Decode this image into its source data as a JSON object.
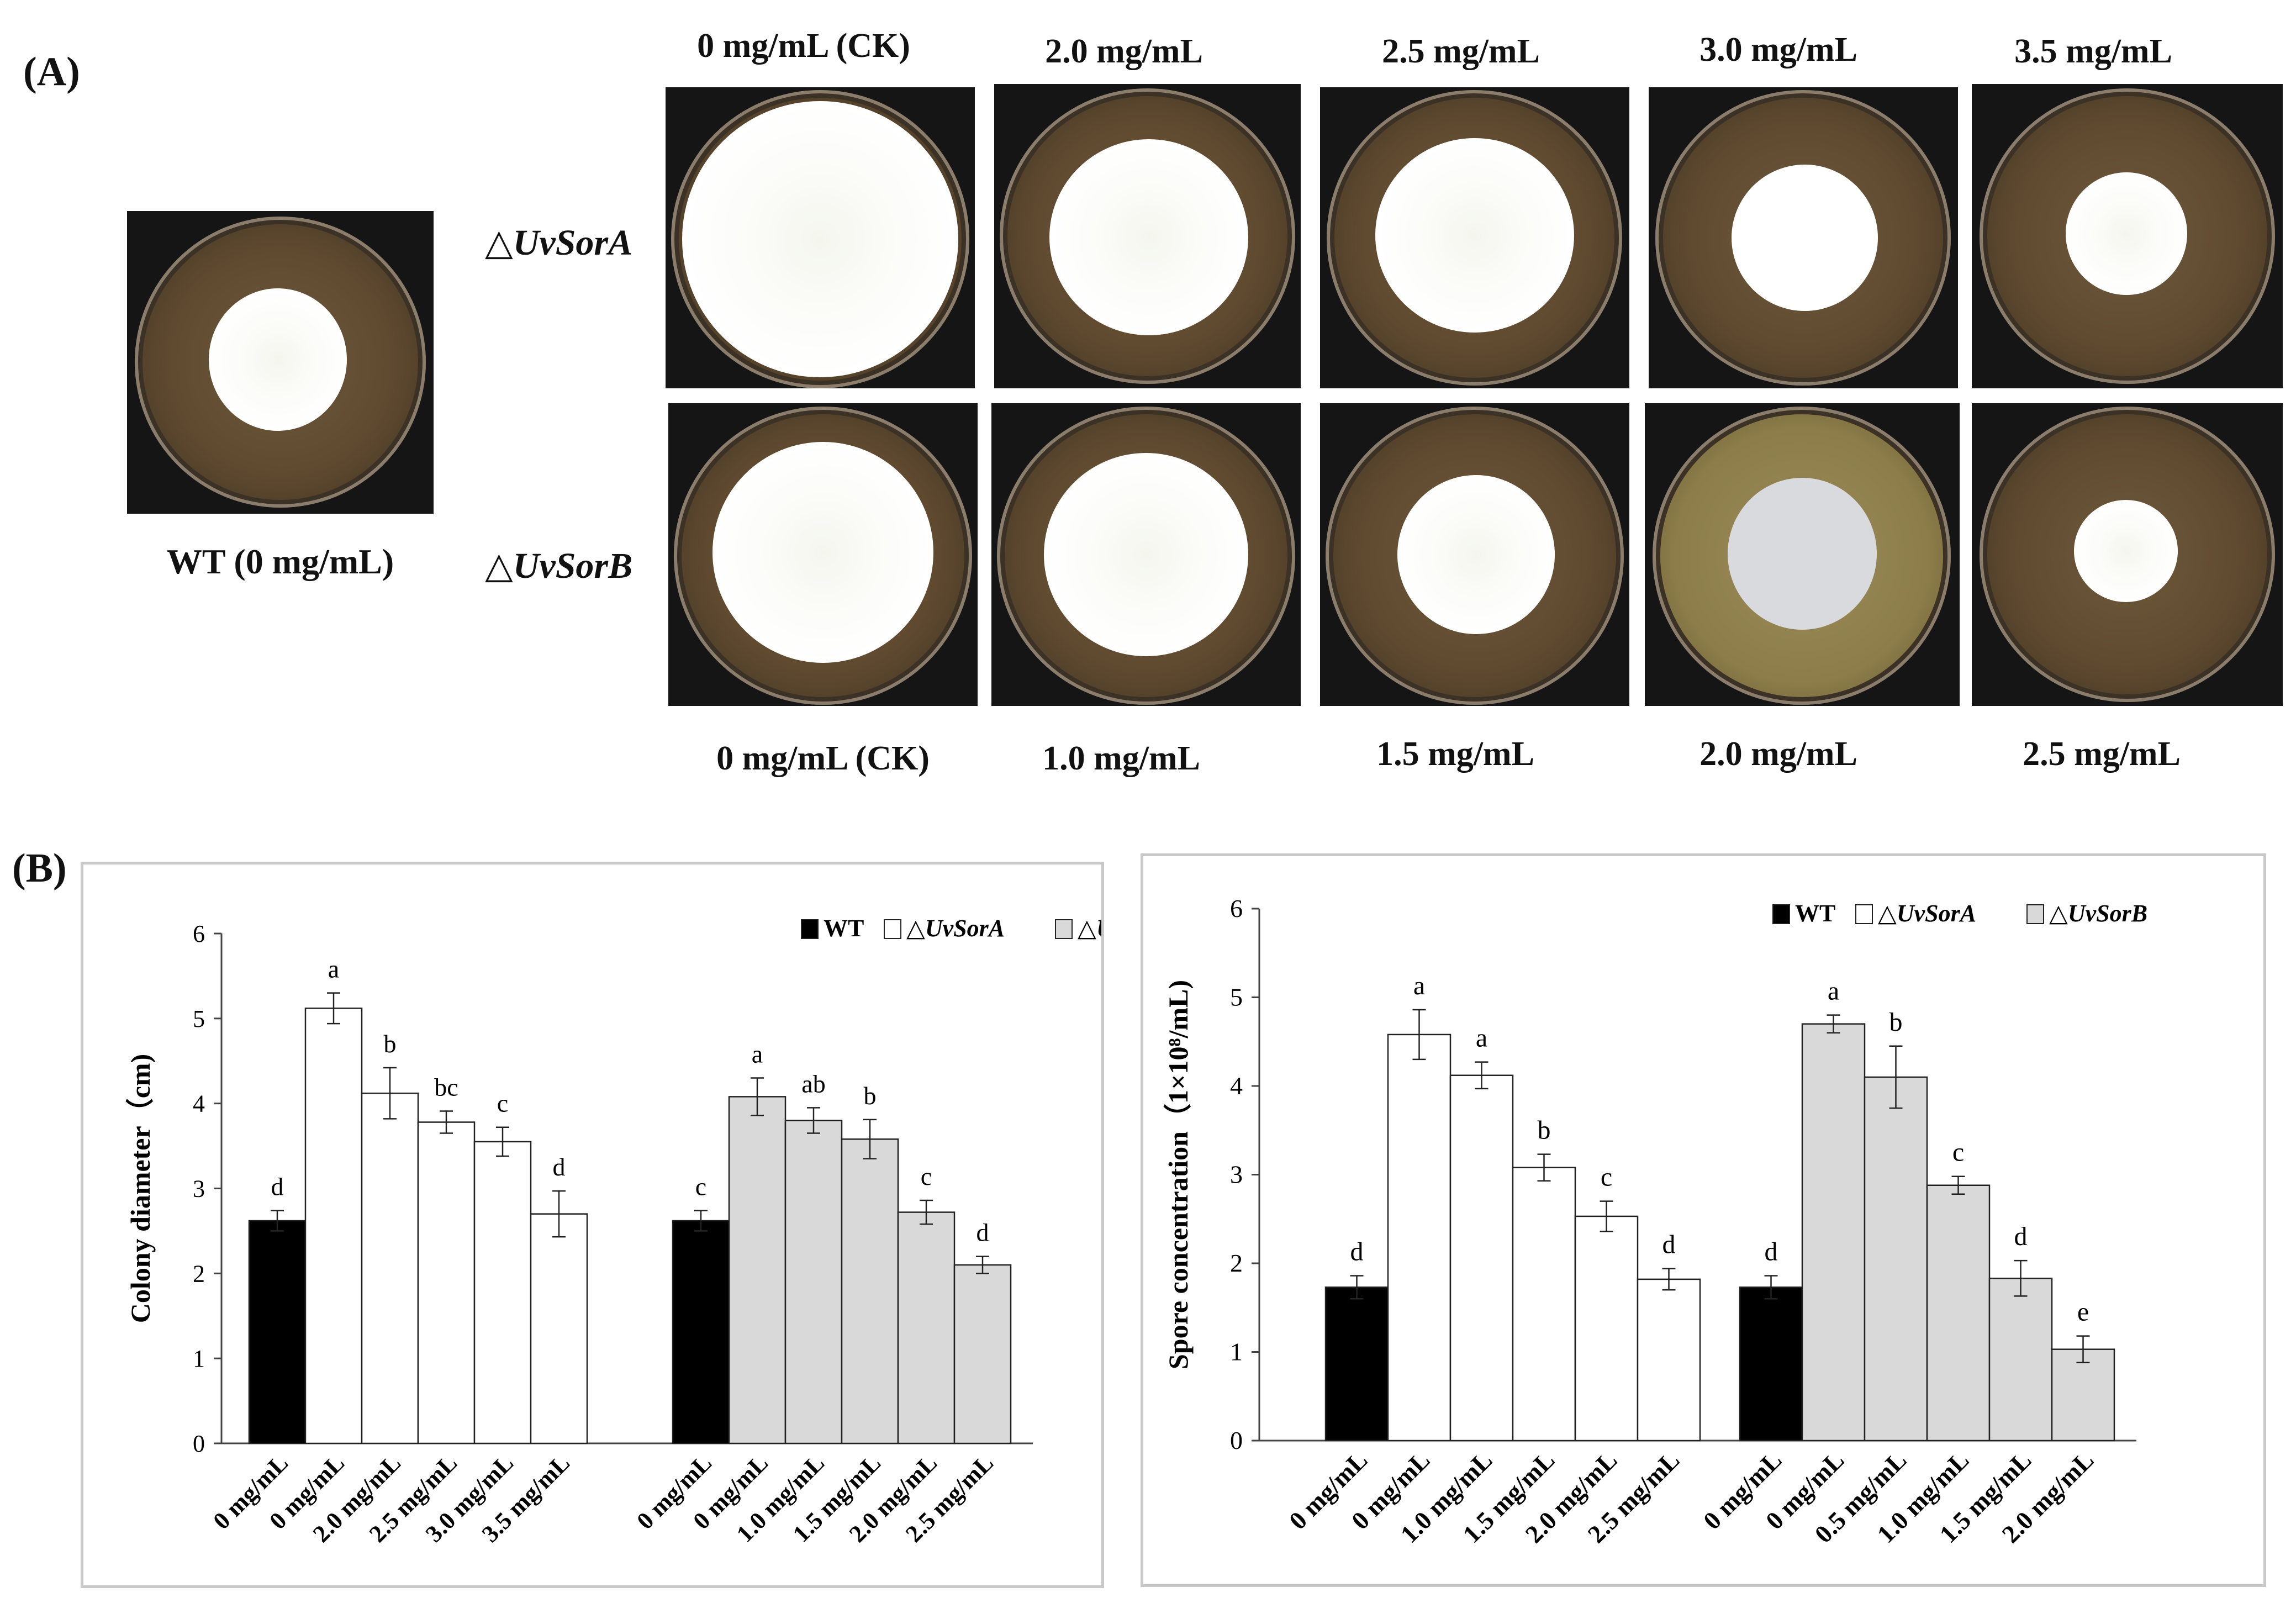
{
  "panel_a": {
    "label": "(A)",
    "top_concentrations": [
      "0 mg/mL (CK)",
      "2.0 mg/mL",
      "2.5 mg/mL",
      "3.0 mg/mL",
      "3.5 mg/mL"
    ],
    "bottom_concentrations": [
      "0 mg/mL (CK)",
      "1.0 mg/mL",
      "1.5 mg/mL",
      "2.0 mg/mL",
      "2.5 mg/mL"
    ],
    "strain_a": "UvSorA",
    "strain_b": "UvSorB",
    "triangle": "△",
    "wt_label": "WT  (0 mg/mL)"
  },
  "panel_b": {
    "label": "(B)"
  },
  "chart_data": [
    {
      "type": "bar",
      "title": "",
      "ylabel": "Colony diameter（cm)",
      "xlabel": "",
      "ylim": [
        0,
        6
      ],
      "yticks": [
        "0",
        "1",
        "2",
        "3",
        "4",
        "5",
        "6"
      ],
      "legend": {
        "placement": "top-right",
        "entries": [
          "WT",
          "△UvSorA",
          "△UvSorB"
        ],
        "colors": [
          "#000000",
          "#ffffff",
          "#d9d9d9"
        ]
      },
      "groups": [
        {
          "categories": [
            "0 mg/mL",
            "0 mg/mL",
            "2.0 mg/mL",
            "2.5 mg/mL",
            "3.0 mg/mL",
            "3.5 mg/mL"
          ],
          "series": [
            "WT",
            "△UvSorA",
            "△UvSorA",
            "△UvSorA",
            "△UvSorA",
            "△UvSorA"
          ],
          "values": [
            2.62,
            5.12,
            4.12,
            3.78,
            3.55,
            2.7
          ],
          "errors": [
            0.12,
            0.18,
            0.3,
            0.13,
            0.17,
            0.27
          ],
          "letters": [
            "d",
            "a",
            "b",
            "bc",
            "c",
            "d"
          ]
        },
        {
          "categories": [
            "0 mg/mL",
            "0 mg/mL",
            "1.0 mg/mL",
            "1.5 mg/mL",
            "2.0 mg/mL",
            "2.5 mg/mL"
          ],
          "series": [
            "WT",
            "△UvSorB",
            "△UvSorB",
            "△UvSorB",
            "△UvSorB",
            "△UvSorB"
          ],
          "values": [
            2.62,
            4.08,
            3.8,
            3.58,
            2.72,
            2.1
          ],
          "errors": [
            0.12,
            0.22,
            0.15,
            0.23,
            0.14,
            0.1
          ],
          "letters": [
            "c",
            "a",
            "ab",
            "b",
            "c",
            "d"
          ]
        }
      ]
    },
    {
      "type": "bar",
      "title": "",
      "ylabel": "Spore  concentration（1×10⁸/mL)",
      "xlabel": "",
      "ylim": [
        0,
        6
      ],
      "yticks": [
        "0",
        "1",
        "2",
        "3",
        "4",
        "5",
        "6"
      ],
      "legend": {
        "placement": "top-right",
        "entries": [
          "WT",
          "△UvSorA",
          "△UvSorB"
        ],
        "colors": [
          "#000000",
          "#ffffff",
          "#d9d9d9"
        ]
      },
      "groups": [
        {
          "categories": [
            "0 mg/mL",
            "0 mg/mL",
            "1.0 mg/mL",
            "1.5 mg/mL",
            "2.0 mg/mL",
            "2.5 mg/mL"
          ],
          "series": [
            "WT",
            "△UvSorA",
            "△UvSorA",
            "△UvSorA",
            "△UvSorA",
            "△UvSorA"
          ],
          "values": [
            1.73,
            4.58,
            4.12,
            3.08,
            2.53,
            1.82
          ],
          "errors": [
            0.13,
            0.28,
            0.15,
            0.15,
            0.17,
            0.12
          ],
          "letters": [
            "d",
            "a",
            "a",
            "b",
            "c",
            "d"
          ]
        },
        {
          "categories": [
            "0 mg/mL",
            "0 mg/mL",
            "0.5 mg/mL",
            "1.0 mg/mL",
            "1.5 mg/mL",
            "2.0 mg/mL"
          ],
          "series": [
            "WT",
            "△UvSorB",
            "△UvSorB",
            "△UvSorB",
            "△UvSorB",
            "△UvSorB"
          ],
          "values": [
            1.73,
            4.7,
            4.1,
            2.88,
            1.83,
            1.03
          ],
          "errors": [
            0.13,
            0.1,
            0.35,
            0.1,
            0.2,
            0.15
          ],
          "letters": [
            "d",
            "a",
            "b",
            "c",
            "d",
            "e"
          ]
        }
      ]
    }
  ]
}
